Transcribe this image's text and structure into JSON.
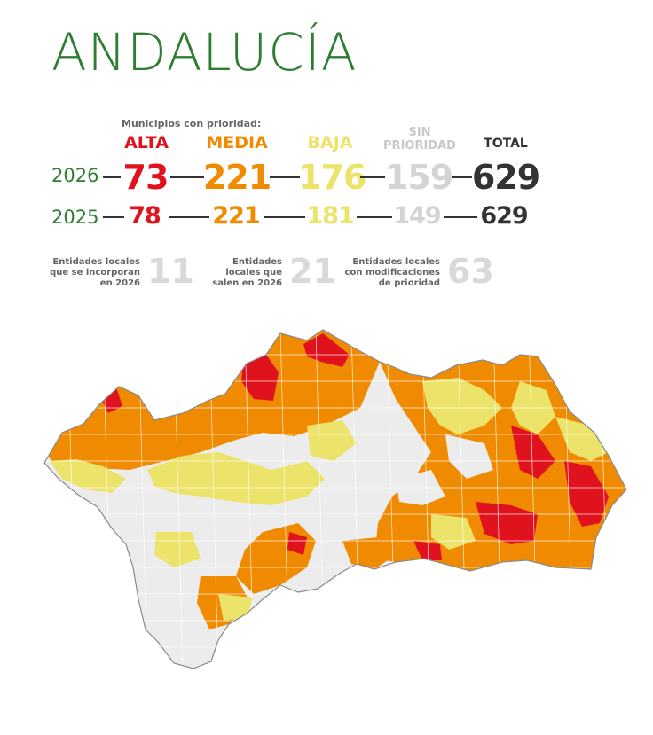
{
  "title": "ANDALUCÍA",
  "summary": {
    "caption": "Municipios con prioridad:",
    "headers": {
      "alta": "ALTA",
      "media": "MEDIA",
      "baja": "BAJA",
      "sin_line1": "SIN",
      "sin_line2": "PRIORIDAD",
      "total": "TOTAL"
    },
    "rows": [
      {
        "year": "2026",
        "alta": "73",
        "media": "221",
        "baja": "176",
        "sin": "159",
        "total": "629"
      },
      {
        "year": "2025",
        "alta": "78",
        "media": "221",
        "baja": "181",
        "sin": "149",
        "total": "629"
      }
    ],
    "colors": {
      "alta": "#e0121d",
      "media": "#f08a00",
      "baja": "#ece46a",
      "sin": "#d4d4d4",
      "total": "#333333",
      "year": "#2e7d32"
    }
  },
  "entities": [
    {
      "line1": "Entidades locales",
      "line2": "que se incorporan",
      "line3": "en 2026",
      "value": "11"
    },
    {
      "line1": "Entidades",
      "line2": "locales que",
      "line3": "salen en 2026",
      "value": "21"
    },
    {
      "line1": "Entidades locales",
      "line2": "con modificaciones",
      "line3": "de prioridad",
      "value": "63"
    }
  ],
  "map": {
    "region": "Andalucía",
    "legend_colors": {
      "alta": "#e0121d",
      "media": "#f08a00",
      "baja": "#ece46a",
      "sin": "#ececec",
      "border": "#9a9a9a"
    }
  }
}
